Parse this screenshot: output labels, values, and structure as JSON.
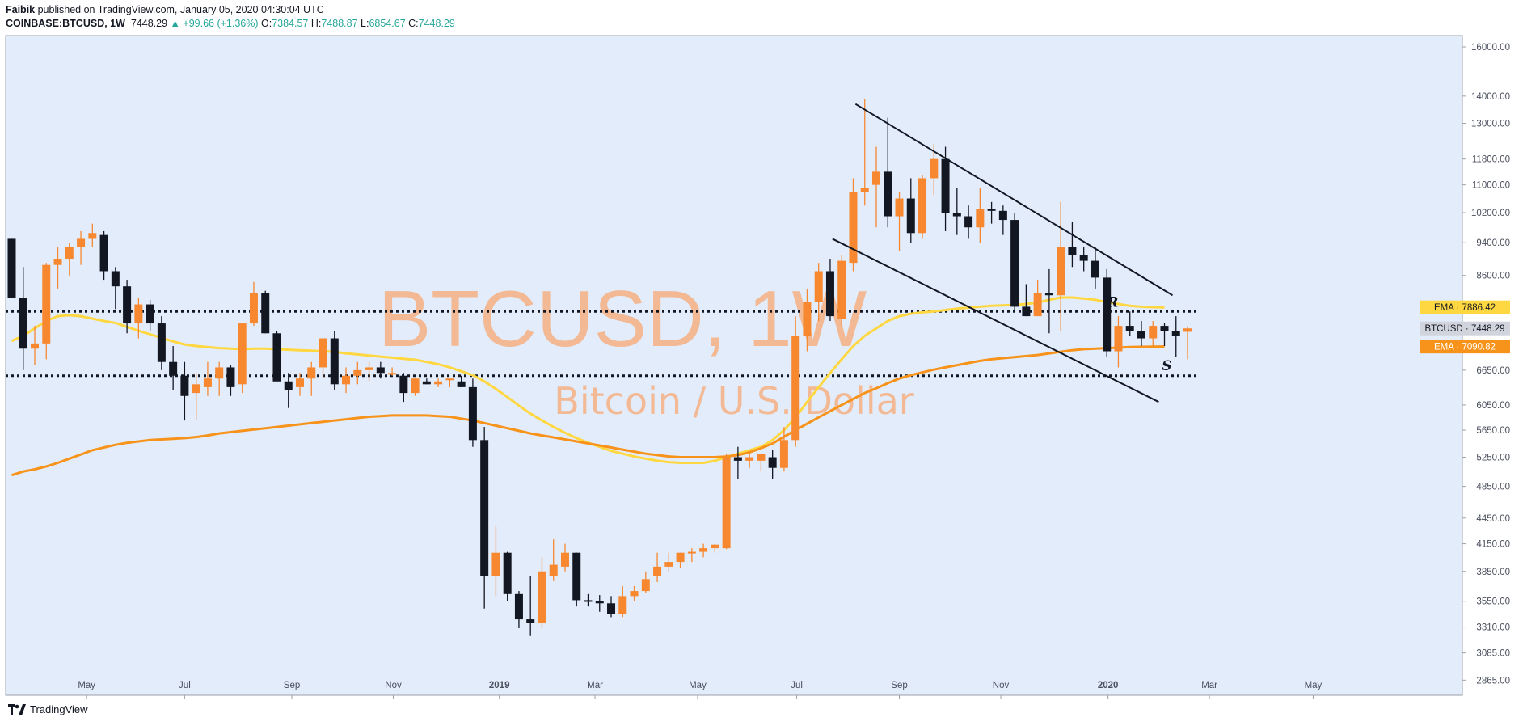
{
  "header": {
    "author": "Faibik",
    "published_text": "published on TradingView.com, January 05, 2020 04:30:04 UTC",
    "symbol": "COINBASE:BTCUSD, 1W",
    "last": "7448.29",
    "change": "▲ +99.66 (+1.36%)",
    "o_label": "O:",
    "o_value": "7384.57",
    "h_label": "H:",
    "h_value": "7488.87",
    "l_label": "L:",
    "l_value": "6854.67",
    "c_label": "C:",
    "c_value": "7448.29"
  },
  "footer": {
    "brand": "TradingView"
  },
  "colors": {
    "background": "#e3ecfb",
    "up_candle": "#f7882f",
    "down_candle": "#131722",
    "ema_fast": "#ffd740",
    "ema_slow": "#f7931a",
    "watermark": "#f7a872"
  },
  "chart_data": {
    "type": "candlestick",
    "title": "BTCUSD, 1W",
    "subtitle": "Bitcoin / U.S. Dollar",
    "y_scale": "log",
    "ylim": [
      2750,
      16500
    ],
    "y_ticks": [
      "16000.00",
      "14000.00",
      "13000.00",
      "11800.00",
      "11000.00",
      "10200.00",
      "9400.00",
      "8600.00",
      "7800.00",
      "6650.00",
      "6050.00",
      "5650.00",
      "5250.00",
      "4850.00",
      "4450.00",
      "4150.00",
      "3850.00",
      "3550.00",
      "3310.00",
      "3085.00",
      "2865.00"
    ],
    "x_ticks": [
      {
        "label": "May",
        "week": 6.5
      },
      {
        "label": "Jul",
        "week": 15.0
      },
      {
        "label": "Sep",
        "week": 24.3
      },
      {
        "label": "Nov",
        "week": 33.1
      },
      {
        "label": "2019",
        "week": 42.3
      },
      {
        "label": "Mar",
        "week": 50.6
      },
      {
        "label": "May",
        "week": 59.5
      },
      {
        "label": "Jul",
        "week": 68.1
      },
      {
        "label": "Sep",
        "week": 77.0
      },
      {
        "label": "Nov",
        "week": 85.8
      },
      {
        "label": "2020",
        "week": 95.1
      },
      {
        "label": "Mar",
        "week": 103.9
      },
      {
        "label": "May",
        "week": 112.9
      }
    ],
    "candles": [
      [
        9500,
        9500,
        8100,
        8100
      ],
      [
        8100,
        8800,
        6650,
        7050
      ],
      [
        7050,
        7500,
        6750,
        7150
      ],
      [
        7150,
        8900,
        6850,
        8850
      ],
      [
        8850,
        9300,
        8300,
        9000
      ],
      [
        9000,
        9400,
        8600,
        9300
      ],
      [
        9300,
        9700,
        8850,
        9500
      ],
      [
        9500,
        9900,
        9300,
        9650
      ],
      [
        9600,
        9700,
        8500,
        8700
      ],
      [
        8700,
        8800,
        7850,
        8350
      ],
      [
        8350,
        8500,
        7350,
        7550
      ],
      [
        7550,
        8100,
        7250,
        7950
      ],
      [
        7950,
        8050,
        7400,
        7550
      ],
      [
        7550,
        7700,
        6650,
        6800
      ],
      [
        6800,
        7100,
        6300,
        6550
      ],
      [
        6550,
        6800,
        5800,
        6200
      ],
      [
        6250,
        6600,
        5800,
        6400
      ],
      [
        6350,
        6800,
        6200,
        6500
      ],
      [
        6500,
        6800,
        6200,
        6700
      ],
      [
        6700,
        6750,
        6200,
        6350
      ],
      [
        6400,
        7500,
        6250,
        7550
      ],
      [
        7550,
        8450,
        7500,
        8200
      ],
      [
        8200,
        8250,
        7350,
        7350
      ],
      [
        7350,
        7400,
        6550,
        6450
      ],
      [
        6450,
        6600,
        6000,
        6300
      ],
      [
        6350,
        6600,
        6200,
        6500
      ],
      [
        6500,
        6800,
        6200,
        6700
      ],
      [
        6700,
        7200,
        6500,
        7250
      ],
      [
        7250,
        7400,
        6300,
        6400
      ],
      [
        6400,
        6700,
        6250,
        6550
      ],
      [
        6550,
        6800,
        6400,
        6650
      ],
      [
        6650,
        6800,
        6450,
        6700
      ],
      [
        6700,
        6800,
        6500,
        6600
      ],
      [
        6600,
        6700,
        6550,
        6600
      ],
      [
        6550,
        6600,
        6100,
        6250
      ],
      [
        6250,
        6500,
        6200,
        6500
      ],
      [
        6450,
        6500,
        6400,
        6400
      ],
      [
        6400,
        6500,
        6350,
        6450
      ],
      [
        6500,
        6500,
        6350,
        6500
      ],
      [
        6450,
        6550,
        6350,
        6350
      ],
      [
        6350,
        6500,
        5400,
        5500
      ],
      [
        5500,
        5700,
        3480,
        3800
      ],
      [
        3800,
        4350,
        3600,
        4050
      ],
      [
        4050,
        4060,
        3550,
        3620
      ],
      [
        3620,
        3650,
        3300,
        3380
      ],
      [
        3380,
        3800,
        3230,
        3350
      ],
      [
        3350,
        4000,
        3300,
        3850
      ],
      [
        3800,
        4200,
        3750,
        3920
      ],
      [
        3900,
        4150,
        3850,
        4050
      ],
      [
        4050,
        4050,
        3500,
        3560
      ],
      [
        3560,
        3620,
        3500,
        3550
      ],
      [
        3550,
        3610,
        3450,
        3530
      ],
      [
        3530,
        3600,
        3400,
        3430
      ],
      [
        3430,
        3700,
        3400,
        3600
      ],
      [
        3600,
        3700,
        3550,
        3650
      ],
      [
        3650,
        3850,
        3630,
        3770
      ],
      [
        3800,
        4050,
        3740,
        3900
      ],
      [
        3900,
        4050,
        3850,
        3950
      ],
      [
        3950,
        4050,
        3890,
        4050
      ],
      [
        4050,
        4100,
        3950,
        4060
      ],
      [
        4060,
        4150,
        4000,
        4100
      ],
      [
        4100,
        4150,
        4050,
        4140
      ],
      [
        4100,
        5300,
        4090,
        5250
      ],
      [
        5250,
        5400,
        4950,
        5200
      ],
      [
        5200,
        5300,
        5100,
        5250
      ],
      [
        5200,
        5300,
        5050,
        5300
      ],
      [
        5250,
        5350,
        4950,
        5100
      ],
      [
        5100,
        5700,
        5050,
        5500
      ],
      [
        5500,
        7700,
        5400,
        7300
      ],
      [
        7300,
        8300,
        7000,
        8000
      ],
      [
        8000,
        8900,
        7600,
        8700
      ],
      [
        8700,
        9000,
        7600,
        7700
      ],
      [
        7650,
        9100,
        7500,
        8950
      ],
      [
        8900,
        11200,
        8700,
        10800
      ],
      [
        10800,
        13900,
        10400,
        10900
      ],
      [
        11000,
        12200,
        9800,
        11400
      ],
      [
        11400,
        13200,
        9800,
        10100
      ],
      [
        10100,
        10800,
        9200,
        10600
      ],
      [
        10600,
        11200,
        9400,
        9650
      ],
      [
        9650,
        11300,
        9500,
        11200
      ],
      [
        11200,
        12300,
        10700,
        11800
      ],
      [
        11800,
        12200,
        9700,
        10200
      ],
      [
        10200,
        10900,
        9600,
        10100
      ],
      [
        10100,
        10400,
        9500,
        9800
      ],
      [
        9800,
        10900,
        9400,
        10300
      ],
      [
        10300,
        10500,
        9900,
        10250
      ],
      [
        10250,
        10400,
        9600,
        10000
      ],
      [
        10000,
        10200,
        7800,
        7900
      ],
      [
        7900,
        8400,
        7700,
        7700
      ],
      [
        7700,
        8500,
        7700,
        8200
      ],
      [
        8200,
        8750,
        7350,
        8150
      ],
      [
        8150,
        10500,
        7400,
        9300
      ],
      [
        9300,
        9950,
        8800,
        9100
      ],
      [
        9100,
        9300,
        8700,
        8950
      ],
      [
        8950,
        9300,
        8300,
        8550
      ],
      [
        8550,
        8750,
        6900,
        7000
      ],
      [
        7000,
        7700,
        6700,
        7500
      ],
      [
        7500,
        7800,
        7300,
        7400
      ],
      [
        7400,
        7600,
        7100,
        7250
      ],
      [
        7250,
        7600,
        7100,
        7500
      ],
      [
        7500,
        7550,
        7100,
        7400
      ],
      [
        7400,
        7700,
        6900,
        7300
      ],
      [
        7380,
        7490,
        6850,
        7448
      ]
    ],
    "series": [
      {
        "name": "EMA",
        "value_label": "7886.42",
        "values": [
          7200,
          7300,
          7450,
          7600,
          7700,
          7720,
          7700,
          7650,
          7600,
          7560,
          7480,
          7400,
          7330,
          7260,
          7190,
          7130,
          7100,
          7080,
          7060,
          7050,
          7040,
          7050,
          7050,
          7040,
          7030,
          7020,
          7010,
          7000,
          6990,
          6960,
          6940,
          6920,
          6900,
          6880,
          6860,
          6840,
          6800,
          6760,
          6700,
          6630,
          6560,
          6450,
          6320,
          6180,
          6040,
          5910,
          5800,
          5700,
          5610,
          5530,
          5460,
          5400,
          5340,
          5300,
          5260,
          5230,
          5200,
          5180,
          5170,
          5170,
          5170,
          5200,
          5250,
          5300,
          5350,
          5400,
          5500,
          5650,
          5850,
          6100,
          6350,
          6600,
          6850,
          7100,
          7300,
          7450,
          7600,
          7700,
          7750,
          7780,
          7800,
          7830,
          7860,
          7880,
          7900,
          7920,
          7930,
          7940,
          7960,
          7990,
          8050,
          8100,
          8100,
          8080,
          8050,
          8000,
          7960,
          7920,
          7900,
          7890,
          7886
        ]
      },
      {
        "name": "EMA",
        "value_label": "7090.82",
        "values": [
          5000,
          5050,
          5080,
          5120,
          5170,
          5230,
          5290,
          5350,
          5390,
          5430,
          5460,
          5480,
          5500,
          5510,
          5520,
          5530,
          5545,
          5570,
          5600,
          5620,
          5640,
          5660,
          5680,
          5700,
          5720,
          5740,
          5760,
          5780,
          5800,
          5820,
          5840,
          5860,
          5870,
          5880,
          5880,
          5880,
          5880,
          5870,
          5860,
          5830,
          5800,
          5760,
          5720,
          5680,
          5640,
          5600,
          5570,
          5540,
          5510,
          5480,
          5450,
          5420,
          5390,
          5360,
          5330,
          5300,
          5280,
          5260,
          5250,
          5250,
          5250,
          5250,
          5260,
          5280,
          5320,
          5380,
          5450,
          5550,
          5650,
          5750,
          5850,
          5950,
          6050,
          6150,
          6250,
          6330,
          6420,
          6500,
          6560,
          6610,
          6660,
          6700,
          6740,
          6780,
          6820,
          6850,
          6870,
          6890,
          6910,
          6930,
          6960,
          6990,
          7020,
          7040,
          7050,
          7060,
          7070,
          7080,
          7085,
          7090,
          7090.82
        ]
      }
    ],
    "current_price_label": "BTCUSD · 7448.29",
    "ema_fast_label": "EMA · 7886.42",
    "ema_slow_label": "EMA · 7090.82",
    "levels": [
      7800,
      6550
    ],
    "trend_lines": [
      {
        "from": [
          73.2,
          13700
        ],
        "to": [
          100.7,
          8150
        ]
      },
      {
        "from": [
          71.2,
          9500
        ],
        "to": [
          99.5,
          6100
        ]
      }
    ],
    "annotations": [
      {
        "text": "R",
        "week": 95.5,
        "price": 7900
      },
      {
        "text": "S",
        "week": 100.2,
        "price": 6650
      }
    ]
  }
}
